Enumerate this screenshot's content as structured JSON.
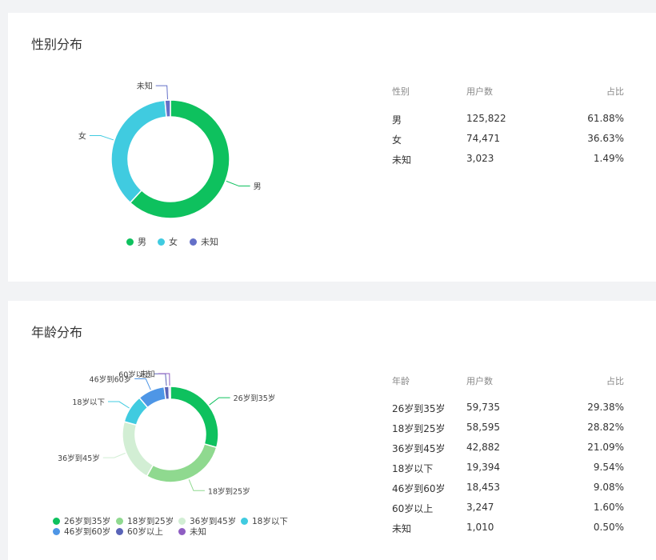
{
  "colors": {
    "male": "#0ec15e",
    "female": "#40cbe0",
    "unknown": "#6470c8"
  },
  "gender": {
    "title": "性别分布",
    "table_headers": [
      "性别",
      "用户数",
      "占比"
    ],
    "chart_data": {
      "type": "pie",
      "categories": [
        "男",
        "女",
        "未知"
      ],
      "values": [
        125822,
        74471,
        3023
      ],
      "percents": [
        "61.88%",
        "36.63%",
        "1.49%"
      ],
      "counts": [
        "125,822",
        "74,471",
        "3,023"
      ],
      "colors": [
        "#0ec15e",
        "#40cbe0",
        "#6470c8"
      ],
      "donut": true,
      "legend_position": "bottom"
    }
  },
  "age": {
    "title": "年龄分布",
    "table_headers": [
      "年龄",
      "用户数",
      "占比"
    ],
    "chart_data": {
      "type": "pie",
      "categories": [
        "26岁到35岁",
        "18岁到25岁",
        "36岁到45岁",
        "18岁以下",
        "46岁到60岁",
        "60岁以上",
        "未知"
      ],
      "values": [
        59735,
        58595,
        42882,
        19394,
        18453,
        3247,
        1010
      ],
      "percents": [
        "29.38%",
        "28.82%",
        "21.09%",
        "9.54%",
        "9.08%",
        "1.60%",
        "0.50%"
      ],
      "counts": [
        "59,735",
        "58,595",
        "42,882",
        "19,394",
        "18,453",
        "3,247",
        "1,010"
      ],
      "colors": [
        "#0ec15e",
        "#8fd98f",
        "#d2eed4",
        "#40cbe0",
        "#4e96e6",
        "#5a64b8",
        "#8e5dc2"
      ],
      "donut": true,
      "legend_position": "bottom"
    }
  }
}
